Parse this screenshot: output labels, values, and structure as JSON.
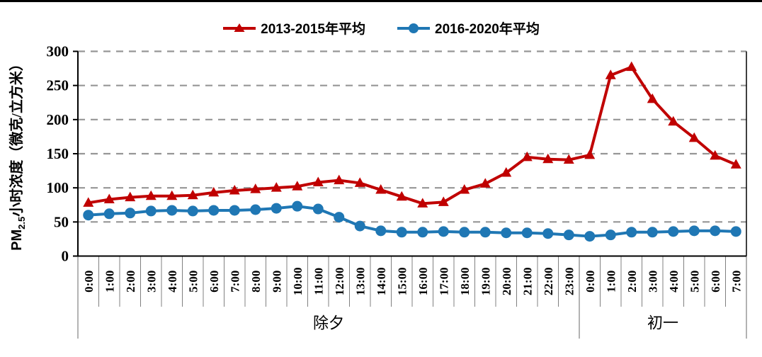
{
  "page": {
    "background": "#ffffff",
    "top_border_color": "#000000"
  },
  "chart_data": {
    "type": "line",
    "title": "",
    "xlabel": "",
    "ylabel": "PM2.5小时浓度（微克/立方米）",
    "ylabel_parts": {
      "prefix": "PM",
      "sub": "2.5",
      "suffix": "小时浓度（微克/立方米）"
    },
    "ylim": [
      0,
      300
    ],
    "yticks": [
      0,
      50,
      100,
      150,
      200,
      250,
      300
    ],
    "grid": "horizontal-dashed",
    "gridline_color": "#969696",
    "axis_color": "#000000",
    "legend_position": "top-center",
    "categories": [
      "0:00",
      "1:00",
      "2:00",
      "3:00",
      "4:00",
      "5:00",
      "6:00",
      "7:00",
      "8:00",
      "9:00",
      "10:00",
      "11:00",
      "12:00",
      "13:00",
      "14:00",
      "15:00",
      "16:00",
      "17:00",
      "18:00",
      "19:00",
      "20:00",
      "21:00",
      "22:00",
      "23:00",
      "0:00",
      "1:00",
      "2:00",
      "3:00",
      "4:00",
      "5:00",
      "6:00",
      "7:00"
    ],
    "category_groups": [
      {
        "label": "除夕",
        "span": 24
      },
      {
        "label": "初一",
        "span": 8
      }
    ],
    "series": [
      {
        "name": "2013-2015年平均",
        "color": "#C00000",
        "marker": "triangle",
        "values": [
          78,
          83,
          86,
          88,
          88,
          89,
          93,
          96,
          98,
          100,
          102,
          108,
          111,
          107,
          97,
          87,
          77,
          79,
          97,
          106,
          122,
          145,
          142,
          141,
          148,
          265,
          277,
          230,
          197,
          173,
          147,
          134
        ]
      },
      {
        "name": "2016-2020年平均",
        "color": "#1F77B4",
        "marker": "circle",
        "values": [
          60,
          62,
          63,
          66,
          67,
          66,
          67,
          67,
          68,
          70,
          73,
          69,
          57,
          44,
          37,
          35,
          35,
          36,
          35,
          35,
          34,
          34,
          33,
          31,
          29,
          31,
          35,
          35,
          36,
          37,
          37,
          36
        ]
      }
    ]
  }
}
